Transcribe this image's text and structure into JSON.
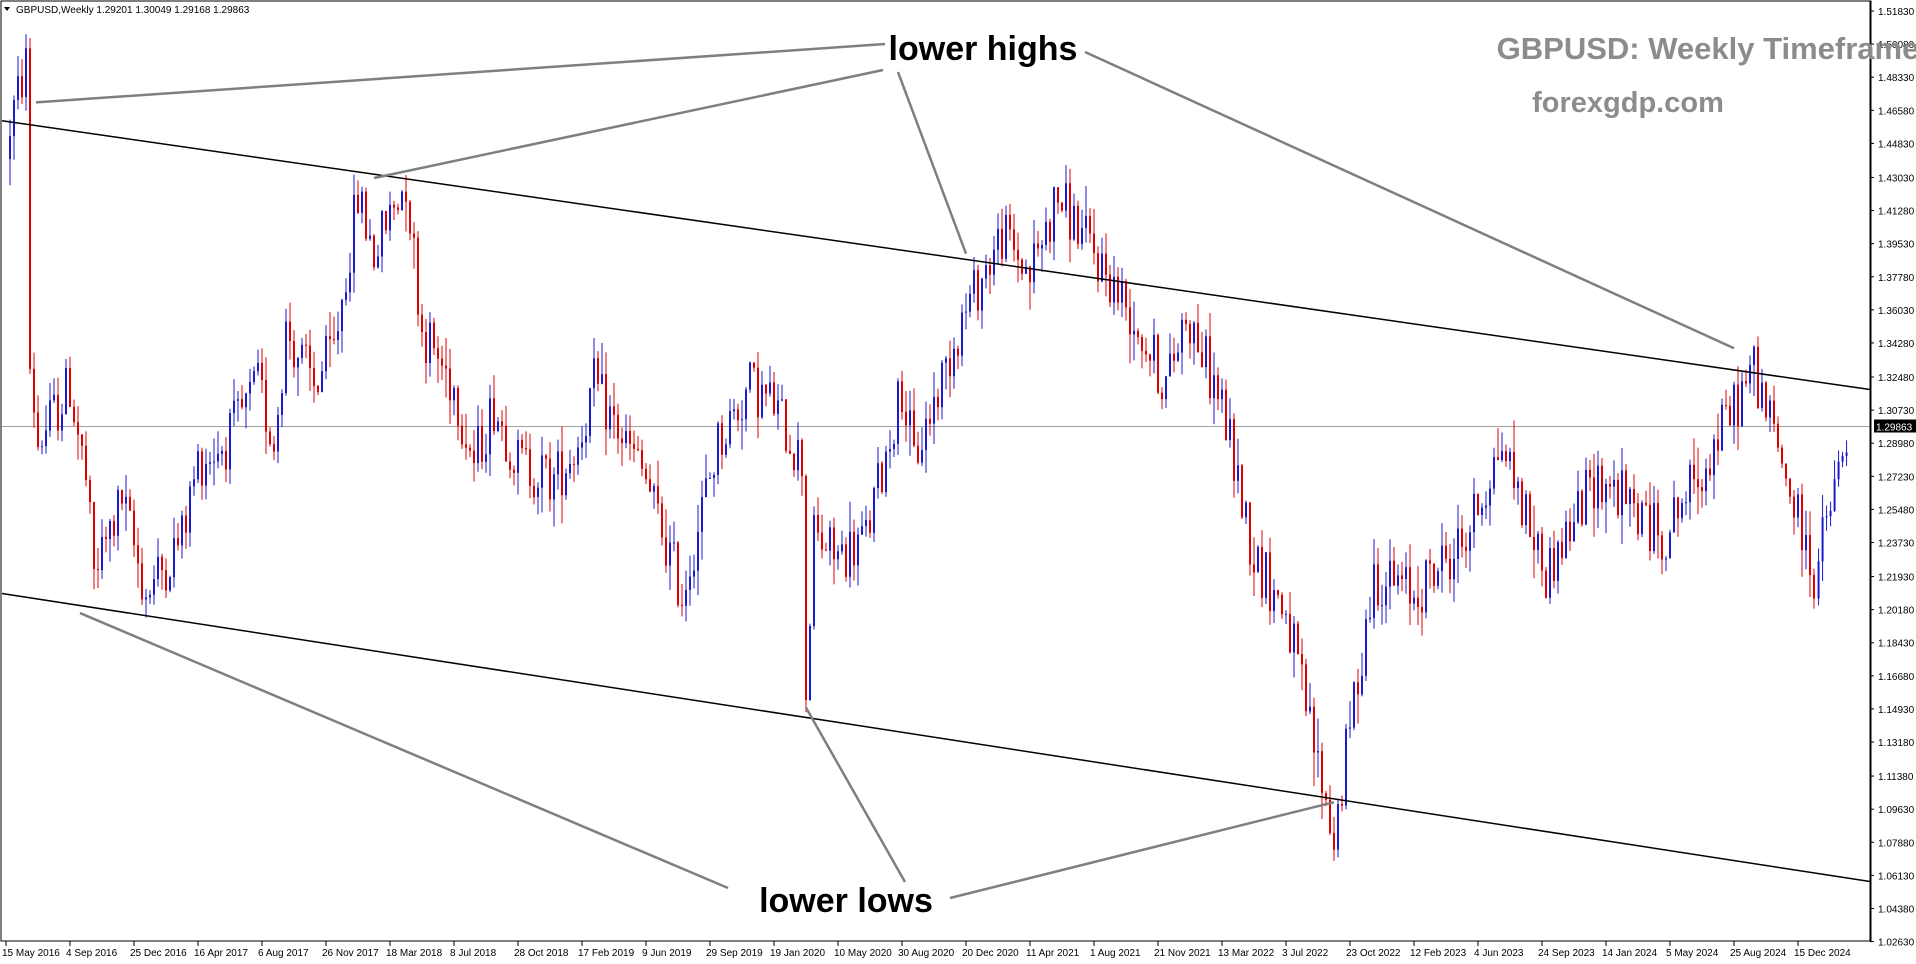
{
  "window": {
    "symbol_info": "GBPUSD,Weekly  1.29201 1.30049 1.29168 1.29863",
    "dropdown_icon": "triangle-down-icon"
  },
  "watermark": {
    "title": "GBPUSD: Weekly Timeframe",
    "site": "forexgdp.com",
    "color": "#8c8c8c"
  },
  "annotations": {
    "lower_highs": "lower highs",
    "lower_lows": "lower lows"
  },
  "colors": {
    "bull": "#1a1ad0",
    "bear": "#e00000",
    "trendline": "#000000",
    "pointer": "#7f7f7f",
    "price_line": "#a0a0a0",
    "price_label_bg": "#000000"
  },
  "chart_data": {
    "type": "candlestick",
    "title": "GBPUSD: Weekly Timeframe",
    "symbol": "GBPUSD",
    "timeframe": "Weekly",
    "last_ohlc": {
      "open": 1.29201,
      "high": 1.30049,
      "low": 1.29168,
      "close": 1.29863
    },
    "current_price_label": "1.29863",
    "ylim": [
      1.0266,
      1.5236
    ],
    "y_ticks": [
      "1.51830",
      "1.50080",
      "1.48330",
      "1.46580",
      "1.44830",
      "1.43030",
      "1.41280",
      "1.39530",
      "1.37780",
      "1.36030",
      "1.34280",
      "1.32480",
      "1.30730",
      "1.28980",
      "1.27230",
      "1.25480",
      "1.23730",
      "1.21930",
      "1.20180",
      "1.18430",
      "1.16680",
      "1.14930",
      "1.13180",
      "1.11380",
      "1.09630",
      "1.07880",
      "1.06130",
      "1.04380",
      "1.02630"
    ],
    "x_ticks": [
      "15 May 2016",
      "4 Sep 2016",
      "25 Dec 2016",
      "16 Apr 2017",
      "6 Aug 2017",
      "26 Nov 2017",
      "18 Mar 2018",
      "8 Jul 2018",
      "28 Oct 2018",
      "17 Feb 2019",
      "9 Jun 2019",
      "29 Sep 2019",
      "19 Jan 2020",
      "10 May 2020",
      "30 Aug 2020",
      "20 Dec 2020",
      "11 Apr 2021",
      "1 Aug 2021",
      "21 Nov 2021",
      "13 Mar 2022",
      "3 Jul 2022",
      "23 Oct 2022",
      "12 Feb 2023",
      "4 Jun 2023",
      "24 Sep 2023",
      "14 Jan 2024",
      "5 May 2024",
      "25 Aug 2024",
      "15 Dec 2024"
    ],
    "close_path": [
      {
        "date": "15 May 2016",
        "close": 1.45
      },
      {
        "date": "19 Jun 2016",
        "close": 1.49
      },
      {
        "date": "26 Jun 2016",
        "close": 1.33
      },
      {
        "date": "10 Jul 2016",
        "close": 1.29
      },
      {
        "date": "4 Sep 2016",
        "close": 1.32
      },
      {
        "date": "2 Oct 2016",
        "close": 1.27
      },
      {
        "date": "16 Oct 2016",
        "close": 1.22
      },
      {
        "date": "4 Dec 2016",
        "close": 1.26
      },
      {
        "date": "15 Jan 2017",
        "close": 1.21
      },
      {
        "date": "19 Mar 2017",
        "close": 1.24
      },
      {
        "date": "16 Apr 2017",
        "close": 1.28
      },
      {
        "date": "4 Jun 2017",
        "close": 1.29
      },
      {
        "date": "30 Jul 2017",
        "close": 1.32
      },
      {
        "date": "27 Aug 2017",
        "close": 1.29
      },
      {
        "date": "17 Sep 2017",
        "close": 1.35
      },
      {
        "date": "5 Nov 2017",
        "close": 1.32
      },
      {
        "date": "10 Dec 2017",
        "close": 1.34
      },
      {
        "date": "21 Jan 2018",
        "close": 1.42
      },
      {
        "date": "18 Feb 2018",
        "close": 1.39
      },
      {
        "date": "15 Apr 2018",
        "close": 1.43
      },
      {
        "date": "13 May 2018",
        "close": 1.35
      },
      {
        "date": "8 Jul 2018",
        "close": 1.32
      },
      {
        "date": "12 Aug 2018",
        "close": 1.28
      },
      {
        "date": "16 Sep 2018",
        "close": 1.31
      },
      {
        "date": "28 Oct 2018",
        "close": 1.28
      },
      {
        "date": "30 Dec 2018",
        "close": 1.27
      },
      {
        "date": "10 Feb 2019",
        "close": 1.29
      },
      {
        "date": "10 Mar 2019",
        "close": 1.32
      },
      {
        "date": "9 Jun 2019",
        "close": 1.27
      },
      {
        "date": "11 Aug 2019",
        "close": 1.21
      },
      {
        "date": "13 Oct 2019",
        "close": 1.29
      },
      {
        "date": "8 Dec 2019",
        "close": 1.32
      },
      {
        "date": "19 Jan 2020",
        "close": 1.31
      },
      {
        "date": "8 Mar 2020",
        "close": 1.28
      },
      {
        "date": "15 Mar 2020",
        "close": 1.16
      },
      {
        "date": "29 Mar 2020",
        "close": 1.24
      },
      {
        "date": "10 May 2020",
        "close": 1.23
      },
      {
        "date": "28 Jun 2020",
        "close": 1.24
      },
      {
        "date": "30 Aug 2020",
        "close": 1.32
      },
      {
        "date": "20 Sep 2020",
        "close": 1.28
      },
      {
        "date": "6 Dec 2020",
        "close": 1.35
      },
      {
        "date": "20 Dec 2020",
        "close": 1.36
      },
      {
        "date": "21 Feb 2021",
        "close": 1.4
      },
      {
        "date": "11 Apr 2021",
        "close": 1.38
      },
      {
        "date": "30 May 2021",
        "close": 1.42
      },
      {
        "date": "1 Aug 2021",
        "close": 1.39
      },
      {
        "date": "3 Oct 2021",
        "close": 1.36
      },
      {
        "date": "5 Dec 2021",
        "close": 1.32
      },
      {
        "date": "9 Jan 2022",
        "close": 1.36
      },
      {
        "date": "13 Mar 2022",
        "close": 1.31
      },
      {
        "date": "8 May 2022",
        "close": 1.23
      },
      {
        "date": "3 Jul 2022",
        "close": 1.2
      },
      {
        "date": "25 Sep 2022",
        "close": 1.08
      },
      {
        "date": "23 Oct 2022",
        "close": 1.14
      },
      {
        "date": "4 Dec 2022",
        "close": 1.22
      },
      {
        "date": "12 Feb 2023",
        "close": 1.21
      },
      {
        "date": "14 May 2023",
        "close": 1.24
      },
      {
        "date": "16 Jul 2023",
        "close": 1.29
      },
      {
        "date": "1 Oct 2023",
        "close": 1.22
      },
      {
        "date": "24 Dec 2023",
        "close": 1.27
      },
      {
        "date": "14 Jan 2024",
        "close": 1.27
      },
      {
        "date": "21 Apr 2024",
        "close": 1.24
      },
      {
        "date": "7 Jul 2024",
        "close": 1.28
      },
      {
        "date": "29 Sep 2024",
        "close": 1.33
      },
      {
        "date": "13 Jan 2025",
        "close": 1.22
      },
      {
        "date": "9 Mar 2025",
        "close": 1.29
      }
    ],
    "trendlines": [
      {
        "name": "upper",
        "from": {
          "date": "15 May 2016",
          "price": 1.46
        },
        "to": {
          "date": "9 Mar 2025",
          "price": 1.32
        }
      },
      {
        "name": "lower",
        "from": {
          "date": "15 May 2016",
          "price": 1.21
        },
        "to": {
          "date": "9 Mar 2025",
          "price": 1.06
        }
      }
    ],
    "annotation_targets": {
      "lower_highs": [
        {
          "date": "15 May 2016",
          "price": 1.47
        },
        {
          "date": "18 Feb 2018",
          "price": 1.43
        },
        {
          "date": "20 Dec 2020",
          "price": 1.39
        },
        {
          "date": "25 Aug 2024",
          "price": 1.34
        }
      ],
      "lower_lows": [
        {
          "date": "4 Sep 2016",
          "price": 1.2
        },
        {
          "date": "15 Mar 2020",
          "price": 1.15
        },
        {
          "date": "25 Sep 2022",
          "price": 1.1
        }
      ]
    },
    "grid": false,
    "legend": "none"
  }
}
